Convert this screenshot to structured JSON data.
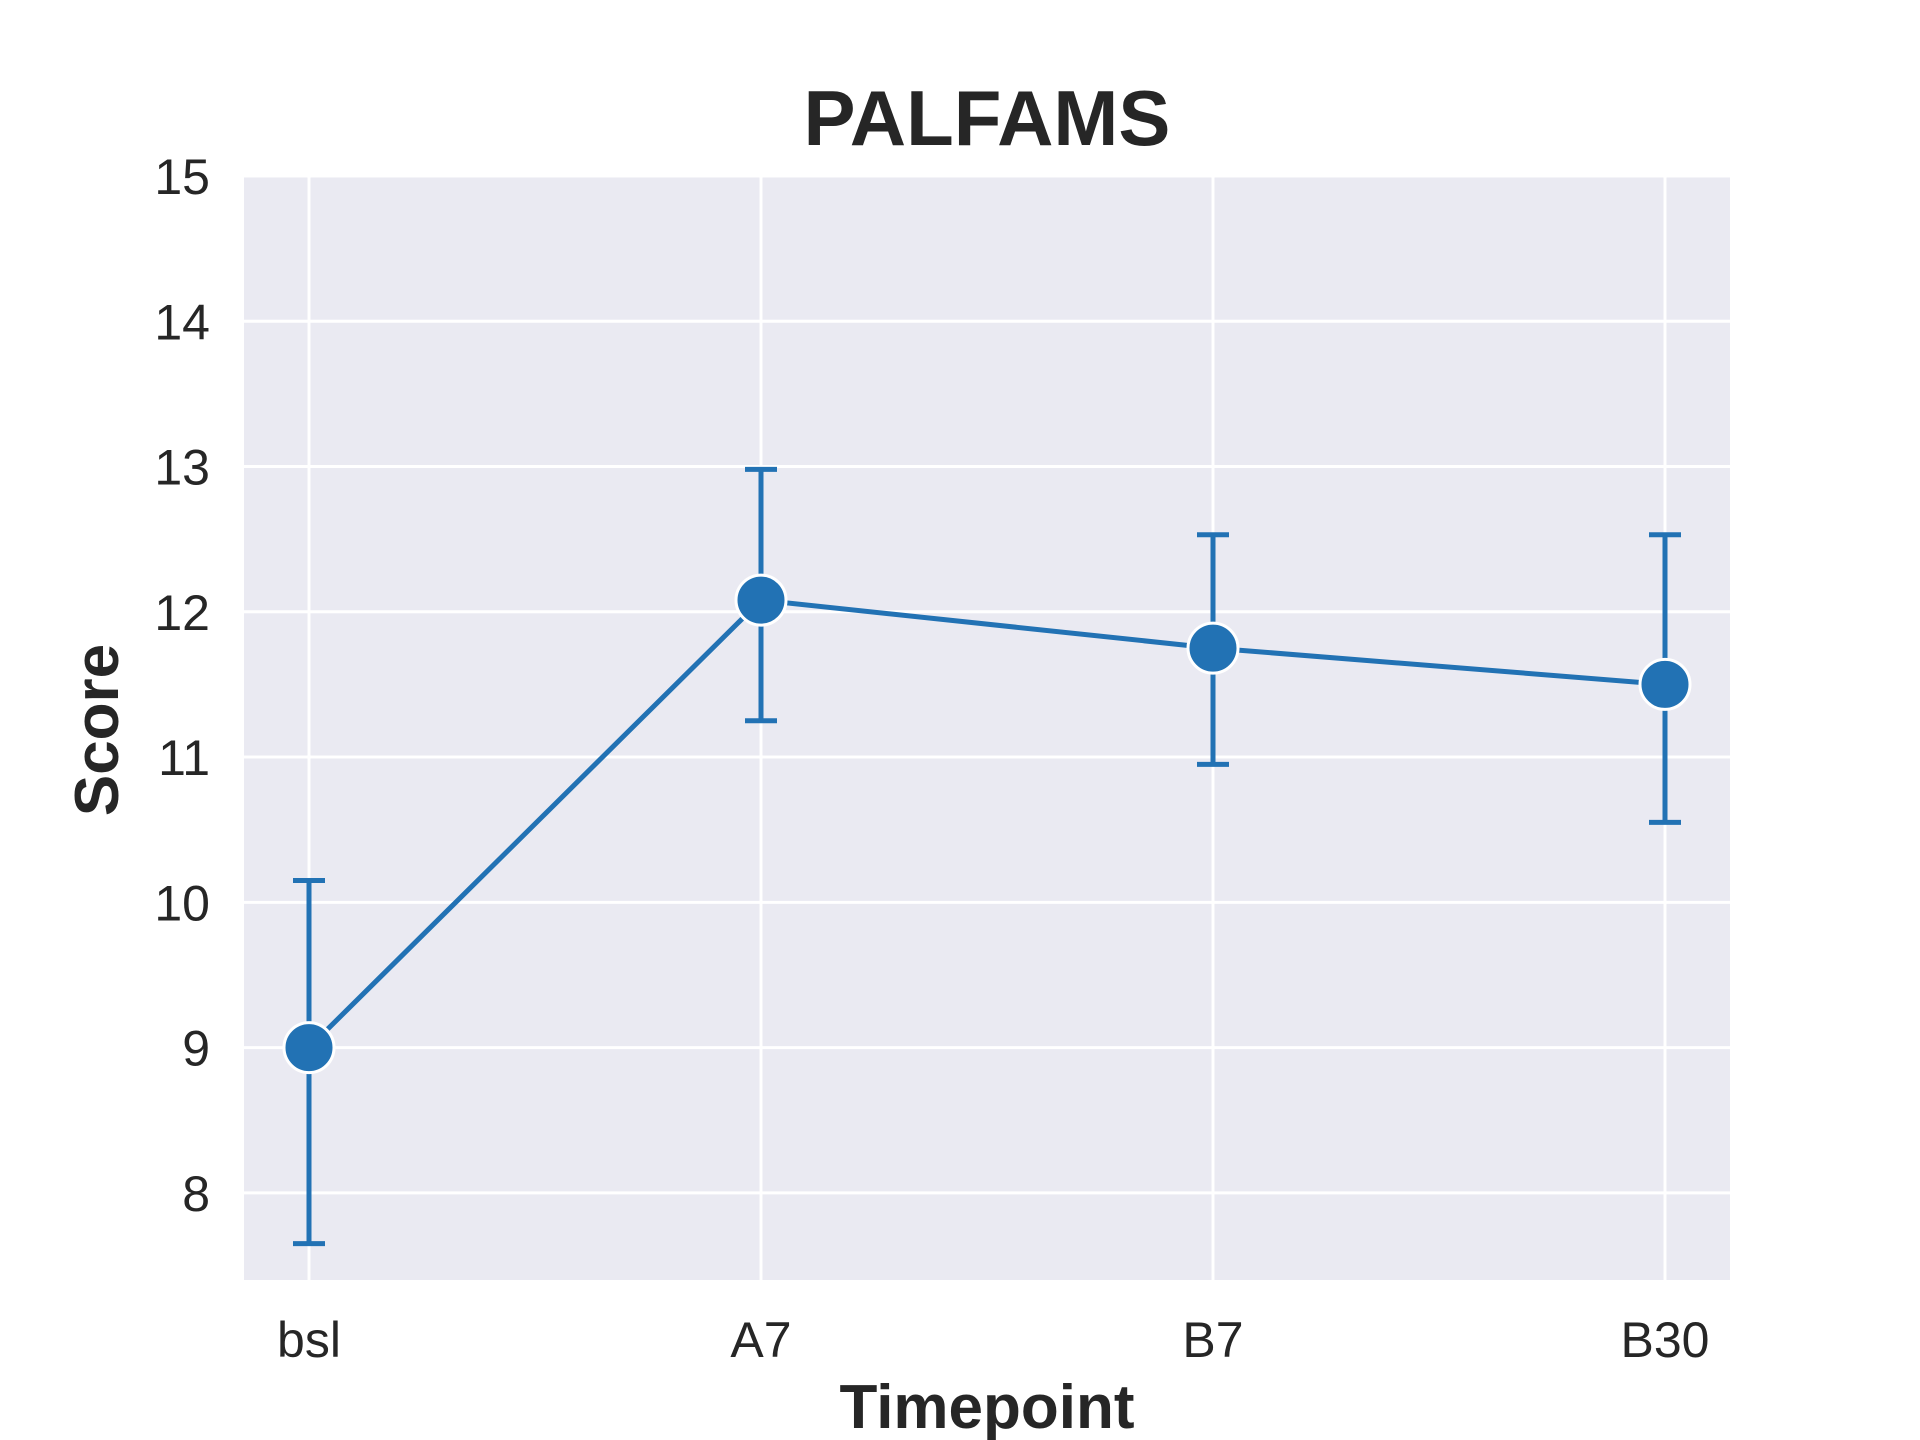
{
  "chart_data": {
    "type": "line",
    "title": "PALFAMS",
    "xlabel": "Timepoint",
    "ylabel": "Score",
    "categories": [
      "bsl",
      "A7",
      "B7",
      "B30"
    ],
    "ylim": [
      7.4,
      15
    ],
    "yticks": [
      8,
      9,
      10,
      11,
      12,
      13,
      14,
      15
    ],
    "grid": true,
    "series": [
      {
        "values": [
          9.0,
          12.08,
          11.75,
          11.5
        ],
        "err_low": [
          7.65,
          11.25,
          10.95,
          10.55
        ],
        "err_high": [
          10.15,
          12.98,
          12.53,
          12.53
        ],
        "color": "#2272b4"
      }
    ],
    "background_color": "#eaeaf2"
  }
}
